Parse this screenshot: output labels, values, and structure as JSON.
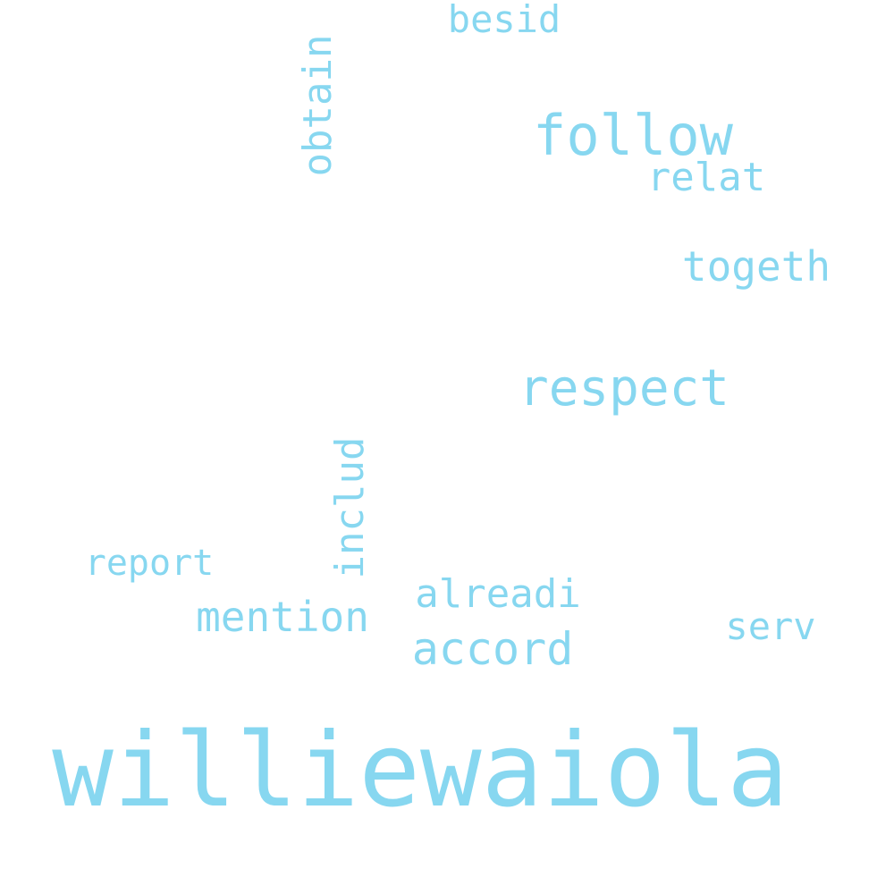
{
  "color": "#87d7f0",
  "words": {
    "williewaiola": "williewaiola",
    "respect": "respect",
    "follow": "follow",
    "accord": "accord",
    "obtain": "obtain",
    "includ": "includ",
    "mention": "mention",
    "alreadi": "alreadi",
    "togeth": "togeth",
    "relat": "relat",
    "besid": "besid",
    "serv": "serv",
    "report": "report"
  }
}
